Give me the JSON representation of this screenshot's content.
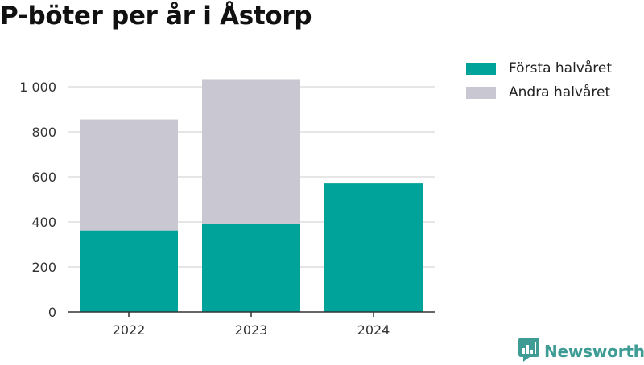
{
  "title": "P-böter per år i Åstorp",
  "colors": {
    "first_half": "#00a39a",
    "second_half": "#c8c7d2",
    "grid": "#dddddd",
    "axis": "#333333",
    "brand": "#3e9c95"
  },
  "legend": [
    {
      "label": "Första halvåret",
      "color": "#00a39a"
    },
    {
      "label": "Andra halvåret",
      "color": "#c8c7d2"
    }
  ],
  "brand": {
    "name": "Newsworthy",
    "icon": "bar-chart-speech-bubble-icon"
  },
  "chart_data": {
    "type": "bar",
    "stacked": true,
    "title": "P-böter per år i Åstorp",
    "xlabel": "",
    "ylabel": "",
    "categories": [
      "2022",
      "2023",
      "2024"
    ],
    "series": [
      {
        "name": "Första halvåret",
        "values": [
          362,
          393,
          571
        ]
      },
      {
        "name": "Andra halvåret",
        "values": [
          493,
          641,
          0
        ]
      }
    ],
    "ylim": [
      0,
      1000
    ],
    "yticks": [
      0,
      200,
      400,
      600,
      800,
      1000
    ],
    "ytick_labels": [
      "0",
      "200",
      "400",
      "600",
      "800",
      "1 000"
    ],
    "grid": true,
    "legend_position": "top-right"
  }
}
